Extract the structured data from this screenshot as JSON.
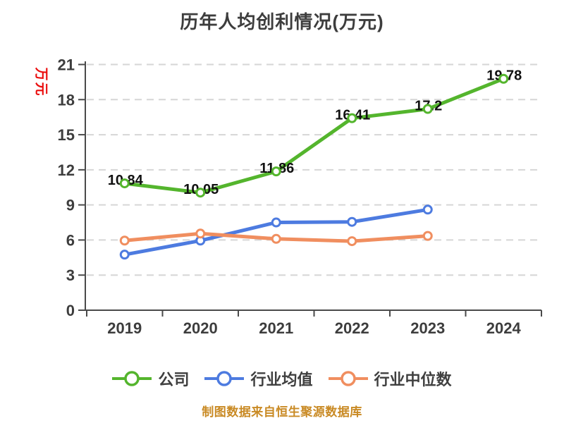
{
  "chart_data": {
    "type": "line",
    "title": "历年人均创利情况(万元)",
    "ylabel": "万元",
    "caption": "制图数据来自恒生聚源数据库",
    "categories": [
      "2019",
      "2020",
      "2021",
      "2022",
      "2023",
      "2024"
    ],
    "y_ticks": [
      0,
      3,
      6,
      9,
      12,
      15,
      18,
      21
    ],
    "ylim": [
      0,
      21
    ],
    "grid": "horizontal-dashed",
    "legend_position": "bottom",
    "series": [
      {
        "name": "公司",
        "color": "#54b52d",
        "values": [
          10.84,
          10.05,
          11.86,
          16.41,
          17.2,
          19.78
        ],
        "labels": [
          "10.84",
          "10.05",
          "11.86",
          "16.41",
          "17.2",
          "19.78"
        ]
      },
      {
        "name": "行业均值",
        "color": "#4d7be0",
        "values": [
          4.75,
          5.95,
          7.5,
          7.55,
          8.6,
          null
        ],
        "labels": null
      },
      {
        "name": "行业中位数",
        "color": "#f08e5f",
        "values": [
          5.95,
          6.55,
          6.1,
          5.9,
          6.35,
          null
        ],
        "labels": null
      }
    ],
    "colors": {
      "title_text": "#3d3d3d",
      "axis": "#4a4a4a",
      "grid": "#d6d6d6",
      "tick_text": "#3d3d3d",
      "legend_text": "#3f3f3f",
      "ylabel_red": "#ea0b0b",
      "caption_orange": "#c98a24",
      "value_label": "#111111",
      "marker_fill": "#ffffff",
      "background": "#ffffff"
    }
  }
}
